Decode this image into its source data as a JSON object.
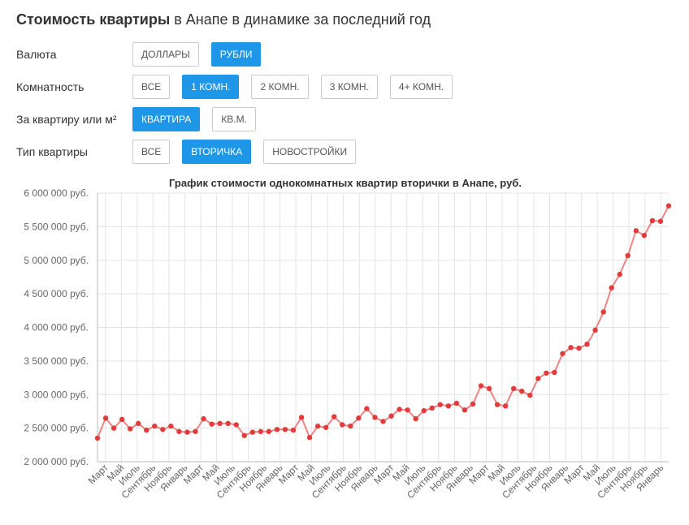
{
  "header": {
    "title_bold": "Стоимость квартиры",
    "title_rest": " в Анапе в динамике за последний год"
  },
  "filters": [
    {
      "label": "Валюта",
      "options": [
        {
          "label": "ДОЛЛАРЫ",
          "active": false
        },
        {
          "label": "РУБЛИ",
          "active": true
        }
      ]
    },
    {
      "label": "Комнатность",
      "options": [
        {
          "label": "ВСЕ",
          "active": false
        },
        {
          "label": "1 КОМН.",
          "active": true
        },
        {
          "label": "2 КОМН.",
          "active": false
        },
        {
          "label": "3 КОМН.",
          "active": false
        },
        {
          "label": "4+ КОМН.",
          "active": false
        }
      ]
    },
    {
      "label": "За квартиру или м²",
      "options": [
        {
          "label": "КВАРТИРА",
          "active": true
        },
        {
          "label": "КВ.М.",
          "active": false
        }
      ]
    },
    {
      "label": "Тип квартиры",
      "options": [
        {
          "label": "ВСЕ",
          "active": false
        },
        {
          "label": "ВТОРИЧКА",
          "active": true
        },
        {
          "label": "НОВОСТРОЙКИ",
          "active": false
        }
      ]
    }
  ],
  "colors": {
    "accent": "#1e97e8",
    "line": "#ee8484",
    "point": "#e23b3b",
    "grid": "#e3e3e3"
  },
  "chart_data": {
    "type": "line",
    "title": "График стоимости однокомнатных квартир вторички в Анапе, руб.",
    "ylim": [
      2000000,
      6000000
    ],
    "y_ticks": [
      {
        "value": 2000000,
        "label": "2 000 000 руб."
      },
      {
        "value": 2500000,
        "label": "2 500 000 руб."
      },
      {
        "value": 3000000,
        "label": "3 000 000 руб."
      },
      {
        "value": 3500000,
        "label": "3 500 000 руб."
      },
      {
        "value": 4000000,
        "label": "4 000 000 руб."
      },
      {
        "value": 4500000,
        "label": "4 500 000 руб."
      },
      {
        "value": 5000000,
        "label": "5 000 000 руб."
      },
      {
        "value": 5500000,
        "label": "5 500 000 руб."
      },
      {
        "value": 6000000,
        "label": "6 000 000 руб."
      }
    ],
    "grid": true,
    "x_labels": [
      "Март",
      "Май",
      "Июль",
      "Сентябрь",
      "Ноябрь",
      "Январь",
      "Март",
      "Май",
      "Июль",
      "Сентябрь",
      "Ноябрь",
      "Январь",
      "Март",
      "Май",
      "Июль",
      "Сентябрь",
      "Ноябрь",
      "Январь",
      "Март",
      "Май",
      "Июль",
      "Сентябрь",
      "Ноябрь",
      "Январь",
      "Март",
      "Май",
      "Июль",
      "Сентябрь",
      "Ноябрь",
      "Январь",
      "Март",
      "Май",
      "Июль",
      "Сентябрь",
      "Ноябрь",
      "Январь"
    ],
    "values": [
      2350000,
      2650000,
      2500000,
      2630000,
      2490000,
      2570000,
      2470000,
      2530000,
      2480000,
      2530000,
      2450000,
      2440000,
      2450000,
      2640000,
      2560000,
      2570000,
      2570000,
      2550000,
      2390000,
      2440000,
      2450000,
      2450000,
      2480000,
      2480000,
      2470000,
      2660000,
      2360000,
      2530000,
      2510000,
      2670000,
      2550000,
      2530000,
      2650000,
      2790000,
      2660000,
      2600000,
      2680000,
      2780000,
      2770000,
      2640000,
      2760000,
      2800000,
      2850000,
      2830000,
      2870000,
      2770000,
      2860000,
      3130000,
      3090000,
      2850000,
      2830000,
      3090000,
      3050000,
      2990000,
      3240000,
      3320000,
      3330000,
      3610000,
      3700000,
      3690000,
      3750000,
      3960000,
      4230000,
      4590000,
      4790000,
      5070000,
      5440000,
      5370000,
      5590000,
      5580000,
      5810000
    ]
  }
}
